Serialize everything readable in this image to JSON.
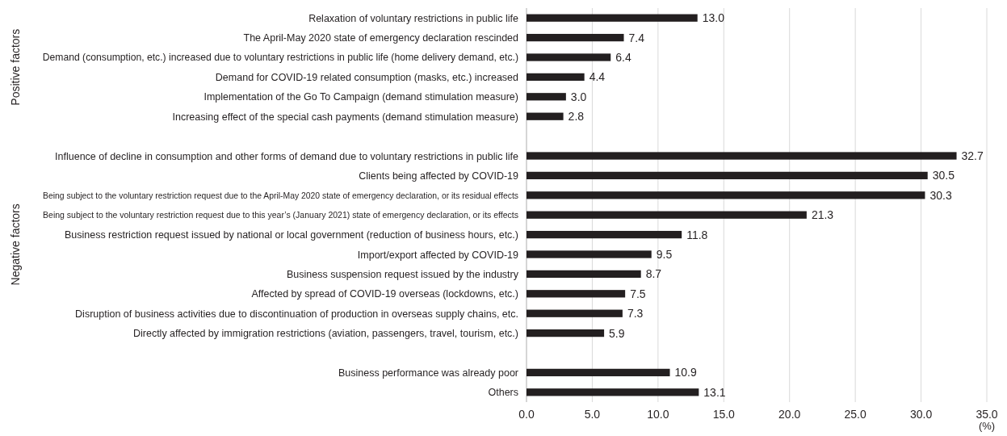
{
  "chart_data": {
    "type": "bar",
    "orientation": "horizontal",
    "categories": [
      "Relaxation of voluntary restrictions in public life",
      "The April-May 2020 state of emergency declaration rescinded",
      "Demand (consumption, etc.) increased due to voluntary restrictions in public life (home delivery demand, etc.)",
      "Demand for COVID-19 related consumption (masks, etc.) increased",
      "Implementation of the Go To Campaign (demand stimulation measure)",
      "Increasing effect of the special cash payments (demand stimulation measure)",
      null,
      "Influence of decline in consumption and other forms of demand due to voluntary restrictions in public life",
      "Clients being affected by COVID-19",
      "Being subject to the voluntary restriction request due to the April-May 2020 state of emergency declaration, or its residual effects",
      "Being subject to the voluntary restriction request due to this year’s (January 2021) state of emergency declaration, or its effects",
      "Business restriction request issued by national or local government (reduction of business hours, etc.)",
      "Import/export affected by COVID-19",
      "Business suspension request issued by the industry",
      "Affected by spread of COVID-19 overseas (lockdowns, etc.)",
      "Disruption of business activities due to discontinuation of production in overseas supply chains, etc.",
      "Directly affected by immigration restrictions (aviation, passengers, travel, tourism, etc.)",
      null,
      "Business performance was already poor",
      "Others"
    ],
    "values": [
      13.0,
      7.4,
      6.4,
      4.4,
      3.0,
      2.8,
      null,
      32.7,
      30.5,
      30.3,
      21.3,
      11.8,
      9.5,
      8.7,
      7.5,
      7.3,
      5.9,
      null,
      10.9,
      13.1
    ],
    "value_labels": [
      "13.0",
      "7.4",
      "6.4",
      "4.4",
      "3.0",
      "2.8",
      null,
      "32.7",
      "30.5",
      "30.3",
      "21.3",
      "11.8",
      "9.5",
      "8.7",
      "7.5",
      "7.3",
      "5.9",
      null,
      "10.9",
      "13.1"
    ],
    "color": "#231f20",
    "xlabel": "(%)",
    "xlim": [
      0,
      35
    ],
    "xticks": [
      {
        "value": 0,
        "label": "0.0"
      },
      {
        "value": 5,
        "label": "5.0"
      },
      {
        "value": 10,
        "label": "10.0"
      },
      {
        "value": 15,
        "label": "15.0"
      },
      {
        "value": 20,
        "label": "20.0"
      },
      {
        "value": 25,
        "label": "25.0"
      },
      {
        "value": 30,
        "label": "30.0"
      },
      {
        "value": 35,
        "label": "35.0"
      }
    ],
    "grid": "x",
    "annotations": [
      "Positive factors",
      "Negative factors"
    ]
  }
}
